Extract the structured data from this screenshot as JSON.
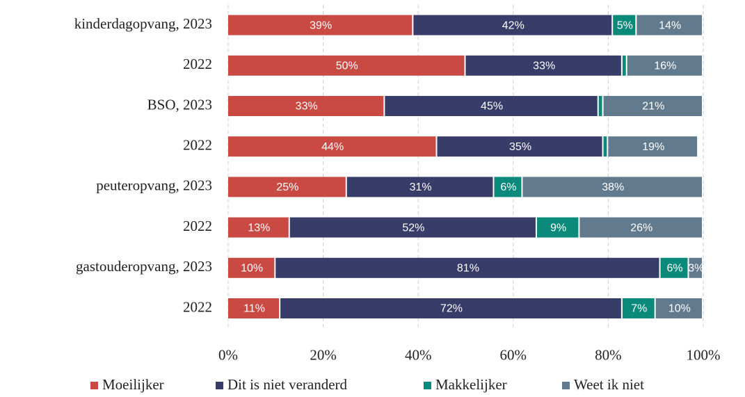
{
  "chart_data": {
    "type": "stacked-barh",
    "categories": [
      "kinderdagopvang, 2023",
      "2022",
      "BSO, 2023",
      "2022",
      "peuteropvang, 2023",
      "2022",
      "gastouderopvang, 2023",
      "2022"
    ],
    "series": [
      {
        "name": "Moeilijker",
        "color": "#c94a43",
        "values": [
          39,
          50,
          33,
          44,
          25,
          13,
          10,
          11
        ],
        "value_labels": [
          "39%",
          "50%",
          "33%",
          "44%",
          "25%",
          "13%",
          "10%",
          "11%"
        ]
      },
      {
        "name": "Dit is niet veranderd",
        "color": "#383c68",
        "values": [
          42,
          33,
          45,
          35,
          31,
          52,
          81,
          72
        ],
        "value_labels": [
          "42%",
          "33%",
          "45%",
          "35%",
          "31%",
          "52%",
          "81%",
          "72%"
        ]
      },
      {
        "name": "Makkelijker",
        "color": "#0b8a7c",
        "values": [
          5,
          1,
          1,
          1,
          6,
          9,
          6,
          7
        ],
        "value_labels": [
          "5%",
          null,
          null,
          null,
          "6%",
          "9%",
          "6%",
          "7%"
        ]
      },
      {
        "name": "Weet ik niet",
        "color": "#627a8e",
        "values": [
          14,
          16,
          21,
          19,
          38,
          26,
          3,
          10
        ],
        "value_labels": [
          "14%",
          "16%",
          "21%",
          "19%",
          "38%",
          "26%",
          "3%",
          "10%"
        ]
      }
    ],
    "xlim": [
      0,
      100
    ],
    "xticks": [
      {
        "value": 0,
        "label": "0%"
      },
      {
        "value": 20,
        "label": "20%"
      },
      {
        "value": 40,
        "label": "40%"
      },
      {
        "value": 60,
        "label": "60%"
      },
      {
        "value": 80,
        "label": "80%"
      },
      {
        "value": 100,
        "label": "100%"
      }
    ],
    "grid": true,
    "legend": "bottom"
  }
}
